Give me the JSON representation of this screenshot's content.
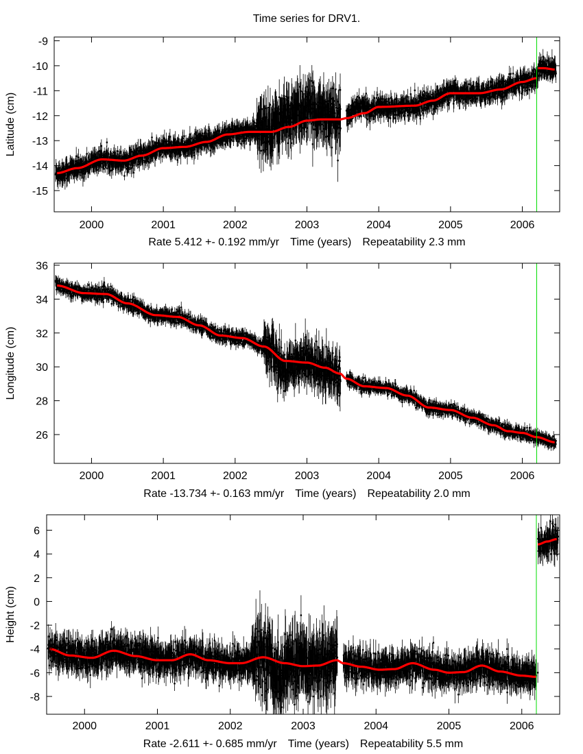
{
  "title": "Time series for DRV1.",
  "chart_data": [
    {
      "type": "scatter",
      "component": "latitude",
      "ylabel": "Latitude (cm)",
      "xlabel": "Time (years)",
      "rate_text": "Rate 5.412 +- 0.192 mm/yr",
      "repeat_text": "Repeatability 2.3 mm",
      "xlim": [
        1999.48,
        2006.52
      ],
      "ylim": [
        -15.85,
        -8.85
      ],
      "xticks": [
        2000,
        2001,
        2002,
        2003,
        2004,
        2005,
        2006
      ],
      "yticks": [
        -15,
        -14,
        -13,
        -12,
        -11,
        -10,
        -9
      ],
      "event_line_x": 2006.2,
      "data_gap": [
        2003.47,
        2003.55
      ],
      "series": [
        {
          "name": "observations",
          "color": "#000000",
          "noise_cm": [
            {
              "from": 1999.5,
              "to": 2002.3,
              "sd": 0.18
            },
            {
              "from": 2002.3,
              "to": 2003.47,
              "sd": 0.45
            },
            {
              "from": 2003.55,
              "to": 2006.5,
              "sd": 0.18
            }
          ],
          "offset_cm": [
            {
              "from": 2002.3,
              "to": 2003.47,
              "dy": 0.45
            },
            {
              "from": 2003.55,
              "to": 2003.9,
              "dy": 0.3
            }
          ]
        },
        {
          "name": "model fit",
          "color": "#ff0000",
          "x": [
            1999.52,
            1999.8,
            2000.15,
            2000.45,
            2000.7,
            2001.0,
            2001.3,
            2001.6,
            2001.9,
            2002.2,
            2002.5,
            2002.75,
            2003.0,
            2003.2,
            2003.46,
            2003.55,
            2003.8,
            2004.0,
            2004.5,
            2004.75,
            2005.0,
            2005.4,
            2005.7,
            2006.0,
            2006.2
          ],
          "y": [
            -14.3,
            -14.1,
            -13.75,
            -13.8,
            -13.6,
            -13.3,
            -13.25,
            -13.05,
            -12.75,
            -12.65,
            -12.65,
            -12.45,
            -12.2,
            -12.15,
            -12.15,
            -12.1,
            -11.9,
            -11.65,
            -11.6,
            -11.4,
            -11.1,
            -11.1,
            -10.95,
            -10.65,
            -10.5
          ]
        },
        {
          "name": "model fit (post-event)",
          "color": "#ff0000",
          "x": [
            2006.22,
            2006.3,
            2006.45
          ],
          "y": [
            -10.1,
            -10.1,
            -10.15
          ]
        }
      ]
    },
    {
      "type": "scatter",
      "component": "longitude",
      "ylabel": "Longitude (cm)",
      "xlabel": "Time (years)",
      "rate_text": "Rate -13.734 +- 0.163 mm/yr",
      "repeat_text": "Repeatability 2.0 mm",
      "xlim": [
        1999.48,
        2006.52
      ],
      "ylim": [
        24.3,
        36.12
      ],
      "xticks": [
        2000,
        2001,
        2002,
        2003,
        2004,
        2005,
        2006
      ],
      "yticks": [
        26,
        28,
        30,
        32,
        34,
        36
      ],
      "event_line_x": 2006.2,
      "data_gap": [
        2003.47,
        2003.55
      ],
      "series": [
        {
          "name": "observations",
          "color": "#000000",
          "noise_cm": [
            {
              "from": 1999.5,
              "to": 2002.4,
              "sd": 0.18
            },
            {
              "from": 2002.4,
              "to": 2003.47,
              "sd": 0.55
            },
            {
              "from": 2003.55,
              "to": 2006.5,
              "sd": 0.16
            }
          ],
          "offset_cm": [
            {
              "from": 2002.55,
              "to": 2002.8,
              "dy": -0.6
            }
          ]
        },
        {
          "name": "model fit",
          "color": "#ff0000",
          "x": [
            1999.52,
            1999.9,
            2000.2,
            2000.5,
            2000.9,
            2001.2,
            2001.5,
            2001.8,
            2002.1,
            2002.4,
            2002.7,
            2003.0,
            2003.25,
            2003.46,
            2003.55,
            2003.8,
            2004.1,
            2004.4,
            2004.7,
            2005.0,
            2005.3,
            2005.6,
            2005.8,
            2006.0,
            2006.2,
            2006.45
          ],
          "y": [
            34.8,
            34.35,
            34.3,
            33.75,
            33.05,
            32.95,
            32.45,
            31.85,
            31.7,
            31.2,
            30.35,
            30.25,
            29.95,
            29.6,
            29.3,
            28.85,
            28.75,
            28.3,
            27.6,
            27.45,
            27.0,
            26.55,
            26.2,
            26.1,
            25.85,
            25.55
          ]
        }
      ]
    },
    {
      "type": "scatter",
      "component": "height",
      "ylabel": "Height (cm)",
      "xlabel": "Time (years)",
      "rate_text": "Rate -2.611 +- 0.685 mm/yr",
      "repeat_text": "Repeatability 5.5 mm",
      "xlim": [
        1999.48,
        2006.52
      ],
      "ylim": [
        -9.5,
        7.3
      ],
      "xticks": [
        2000,
        2001,
        2002,
        2003,
        2004,
        2005,
        2006
      ],
      "yticks": [
        -8,
        -6,
        -4,
        -2,
        0,
        2,
        4,
        6
      ],
      "event_line_x": 2006.2,
      "data_gap": [
        2003.47,
        2003.55
      ],
      "series": [
        {
          "name": "observations",
          "color": "#000000",
          "noise_cm": [
            {
              "from": 1999.5,
              "to": 2002.3,
              "sd": 0.6
            },
            {
              "from": 2002.3,
              "to": 2003.47,
              "sd": 1.2
            },
            {
              "from": 2003.55,
              "to": 2006.2,
              "sd": 0.6
            },
            {
              "from": 2006.22,
              "to": 2006.5,
              "sd": 0.55
            }
          ],
          "offset_cm": [
            {
              "from": 2002.55,
              "to": 2002.8,
              "dy": -1.3
            }
          ]
        },
        {
          "name": "model fit",
          "color": "#ff0000",
          "x": [
            1999.52,
            1999.8,
            2000.1,
            2000.4,
            2000.7,
            2001.0,
            2001.2,
            2001.45,
            2001.7,
            2002.0,
            2002.15,
            2002.45,
            2002.75,
            2003.0,
            2003.2,
            2003.46,
            2003.55,
            2003.8,
            2004.05,
            2004.25,
            2004.5,
            2004.8,
            2005.0,
            2005.2,
            2005.45,
            2005.7,
            2006.0,
            2006.2
          ],
          "y": [
            -4.0,
            -4.55,
            -4.75,
            -4.15,
            -4.6,
            -4.95,
            -4.95,
            -4.45,
            -4.95,
            -5.2,
            -5.2,
            -4.7,
            -5.2,
            -5.45,
            -5.4,
            -4.95,
            -5.2,
            -5.5,
            -5.75,
            -5.7,
            -5.2,
            -5.75,
            -6.0,
            -5.95,
            -5.4,
            -5.9,
            -6.25,
            -6.35
          ]
        },
        {
          "name": "model fit (post-event)",
          "color": "#ff0000",
          "x": [
            2006.22,
            2006.35,
            2006.48
          ],
          "y": [
            4.8,
            5.05,
            5.25
          ]
        }
      ]
    }
  ]
}
